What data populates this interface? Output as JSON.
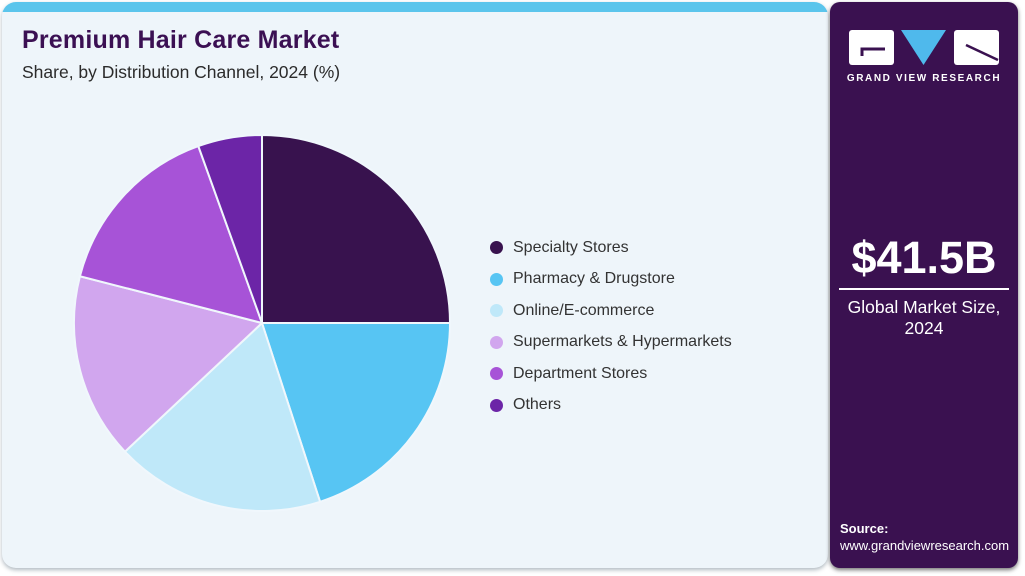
{
  "header": {
    "title": "Premium Hair Care Market",
    "subtitle": "Share, by Distribution Channel, 2024 (%)"
  },
  "chart_data": {
    "type": "pie",
    "title": "Premium Hair Care Market Share, by Distribution Channel, 2024 (%)",
    "unit": "%",
    "start_angle_deg": 0,
    "direction": "clockwise",
    "legend_position": "right",
    "slices": [
      {
        "label": "Specialty Stores",
        "value": 25,
        "color": "#38124e"
      },
      {
        "label": "Pharmacy & Drugstore",
        "value": 20,
        "color": "#57c5f3"
      },
      {
        "label": "Online/E-commerce",
        "value": 18,
        "color": "#bfe8f9"
      },
      {
        "label": "Supermarkets & Hypermarkets",
        "value": 16,
        "color": "#d1a6ee"
      },
      {
        "label": "Department Stores",
        "value": 15.5,
        "color": "#a753d7"
      },
      {
        "label": "Others",
        "value": 5.5,
        "color": "#6c25a7"
      }
    ]
  },
  "sidebar": {
    "logo_text": "GRAND VIEW RESEARCH",
    "market_size_value": "$41.5B",
    "market_size_label_line1": "Global Market Size,",
    "market_size_label_line2": "2024",
    "source_label": "Source:",
    "source_url": "www.grandviewresearch.com"
  },
  "colors": {
    "accent_bar": "#5bc5ec",
    "card_bg": "#eef5fa",
    "sidebar_bg": "#3a1150",
    "title_text": "#3b1053",
    "body_text": "#333333",
    "logo_triangle": "#4fb9ec",
    "logo_mark_dark": "#3a1150",
    "pie_slice_border": "#f0f7fc"
  }
}
